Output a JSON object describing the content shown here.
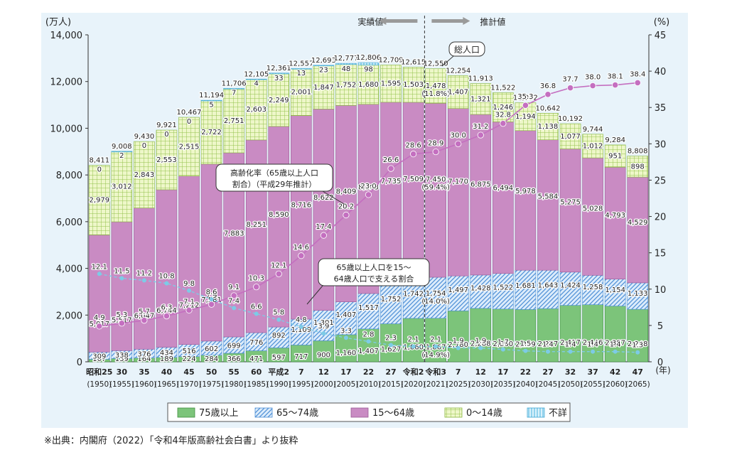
{
  "chart_data": {
    "type": "bar",
    "stacked": true,
    "y_left_unit": "(万人)",
    "y_right_unit": "(%)",
    "year_unit": "(年)",
    "ylim": [
      0,
      14000
    ],
    "y2lim": [
      0,
      45
    ],
    "y_ticks": [
      "0",
      "2,000",
      "4,000",
      "6,000",
      "8,000",
      "10,000",
      "12,000",
      "14,000"
    ],
    "y2_ticks": [
      "0",
      "5",
      "10",
      "15",
      "20",
      "25",
      "30",
      "35",
      "40",
      "45"
    ],
    "categories": [
      {
        "era": "昭和25",
        "year": "(1950)"
      },
      {
        "era": "30",
        "year": "(1955)"
      },
      {
        "era": "35",
        "year": "(1960)"
      },
      {
        "era": "40",
        "year": "(1965)"
      },
      {
        "era": "45",
        "year": "(1970)"
      },
      {
        "era": "50",
        "year": "(1975)"
      },
      {
        "era": "55",
        "year": "(1980)"
      },
      {
        "era": "60",
        "year": "(1985)"
      },
      {
        "era": "平成2",
        "year": "(1990)"
      },
      {
        "era": "7",
        "year": "(1995)"
      },
      {
        "era": "12",
        "year": "(2000)"
      },
      {
        "era": "17",
        "year": "(2005)"
      },
      {
        "era": "22",
        "year": "(2010)"
      },
      {
        "era": "27",
        "year": "(2015)"
      },
      {
        "era": "令和2",
        "year": "(2020)"
      },
      {
        "era": "令和3",
        "year": "(2021)"
      },
      {
        "era": "7",
        "year": "(2025)"
      },
      {
        "era": "12",
        "year": "(2030)"
      },
      {
        "era": "17",
        "year": "(2035)"
      },
      {
        "era": "22",
        "year": "(2040)"
      },
      {
        "era": "27",
        "year": "(2045)"
      },
      {
        "era": "32",
        "year": "(2050)"
      },
      {
        "era": "37",
        "year": "(2055)"
      },
      {
        "era": "42",
        "year": "(2060)"
      },
      {
        "era": "47",
        "year": "(2065)"
      }
    ],
    "series": [
      {
        "name": "75歳以上",
        "color": "#7cc47a",
        "values": [
          107,
          139,
          164,
          189,
          224,
          284,
          366,
          471,
          597,
          717,
          900,
          1160,
          1407,
          1627,
          1860,
          1867,
          2180,
          2288,
          2260,
          2239,
          2277,
          2417,
          2446,
          2387,
          2248
        ],
        "labels": [
          "107",
          "139",
          "164",
          "189",
          "224",
          "284",
          "366",
          "471",
          "597",
          "717",
          "900",
          "1,160",
          "1,407",
          "1,627",
          "1,860",
          "1,867\n(14.9%)",
          "2,180",
          "2,288",
          "2,260",
          "2,239",
          "2,277",
          "2,417",
          "2,446",
          "2,387",
          "2,248"
        ]
      },
      {
        "name": "65～74歳",
        "color": "#7fb0e6",
        "values": [
          309,
          338,
          376,
          434,
          516,
          602,
          699,
          776,
          892,
          1109,
          1301,
          1407,
          1517,
          1752,
          1742,
          1754,
          1497,
          1428,
          1522,
          1681,
          1643,
          1424,
          1258,
          1154,
          1133
        ],
        "labels": [
          "309",
          "338",
          "376",
          "434",
          "516",
          "602",
          "699",
          "776",
          "892",
          "1,109",
          "1,301",
          "1,407",
          "1,517",
          "1,752",
          "1,742",
          "1,754\n(14.0%)",
          "1,497",
          "1,428",
          "1,522",
          "1,681",
          "1,643",
          "1,424",
          "1,258",
          "1,154",
          "1,133"
        ]
      },
      {
        "name": "15～64歳",
        "color": "#c98bc3",
        "values": [
          5017,
          5517,
          6047,
          6744,
          7212,
          7581,
          7883,
          8251,
          8590,
          8716,
          8622,
          8409,
          8103,
          7735,
          7509,
          7450,
          7170,
          6875,
          6494,
          5978,
          5584,
          5275,
          5028,
          4793,
          4529
        ],
        "labels": [
          "5,017",
          "5,517",
          "6,047",
          "6,744",
          "7,212",
          "7,581",
          "7,883",
          "8,251",
          "8,590",
          "8,716",
          "8,622",
          "8,409",
          "8,103",
          "7,735",
          "7,509",
          "7,450\n(59.4%)",
          "7,170",
          "6,875",
          "6,494",
          "5,978",
          "5,584",
          "5,275",
          "5,028",
          "4,793",
          "4,529"
        ]
      },
      {
        "name": "0～14歳",
        "color": "#cfe68a",
        "values": [
          2979,
          3012,
          2843,
          2553,
          2515,
          2722,
          2751,
          2603,
          2249,
          2001,
          1847,
          1752,
          1680,
          1595,
          1503,
          1478,
          1407,
          1321,
          1246,
          1194,
          1138,
          1077,
          1012,
          951,
          898
        ],
        "labels": [
          "2,979",
          "3,012",
          "2,843",
          "2,553",
          "2,515",
          "2,722",
          "2,751",
          "2,603",
          "2,249",
          "2,001",
          "1,847",
          "1,752",
          "1,680",
          "1,595",
          "1,503",
          "1,478\n(11.8%)",
          "1,407",
          "1,321",
          "1,246",
          "1,194",
          "1,138",
          "1,077",
          "1,012",
          "951",
          "898"
        ]
      },
      {
        "name": "不詳",
        "color": "#8fd3f0",
        "values": [
          0,
          2,
          0,
          0,
          0,
          5,
          7,
          4,
          33,
          13,
          23,
          48,
          98,
          0,
          0,
          0,
          0,
          0,
          0,
          0,
          0,
          0,
          0,
          0,
          0
        ],
        "labels": [
          "0",
          "2",
          "0",
          "0",
          "0",
          "5",
          "7",
          "4",
          "33",
          "13",
          "23",
          "48",
          "98",
          "",
          "",
          "",
          "",
          "",
          "",
          "",
          "",
          "",
          "",
          "",
          ""
        ]
      }
    ],
    "totals": [
      "8,411",
      "9,008",
      "9,430",
      "9,921",
      "10,467",
      "11,194",
      "11,706",
      "12,105",
      "12,361",
      "12,557",
      "12,693",
      "12,777",
      "12,806",
      "12,709",
      "12,615",
      "12,550",
      "12,254",
      "11,913",
      "11,522",
      "11,092",
      "10,642",
      "10,192",
      "9,744",
      "9,284",
      "8,808"
    ],
    "total_values": [
      8411,
      9008,
      9430,
      9921,
      10467,
      11194,
      11706,
      12105,
      12361,
      12557,
      12693,
      12777,
      12806,
      12709,
      12615,
      12550,
      12254,
      11913,
      11522,
      11092,
      10642,
      10192,
      9744,
      9284,
      8808
    ],
    "aging_rate": {
      "name": "高齢化率（65歳以上人口割合）（平成29年推計）",
      "color": "#c46fc0",
      "values": [
        4.9,
        5.3,
        5.7,
        6.3,
        7.1,
        7.9,
        9.1,
        10.3,
        12.1,
        14.6,
        17.4,
        20.2,
        23.0,
        26.6,
        28.6,
        28.9,
        30.0,
        31.2,
        32.8,
        35.3,
        36.8,
        37.7,
        38.0,
        38.1,
        38.4
      ]
    },
    "support_ratio": {
      "name": "65歳以上人口を15～64歳人口で支える割合",
      "color": "#7dcbe6",
      "values": [
        12.1,
        11.5,
        11.2,
        10.8,
        9.8,
        8.6,
        7.4,
        6.6,
        5.8,
        4.8,
        3.9,
        3.3,
        2.8,
        2.3,
        2.1,
        2.1,
        1.9,
        1.9,
        1.7,
        1.5,
        1.4,
        1.4,
        1.4,
        1.4,
        1.3
      ]
    },
    "annotations": {
      "actual": "実績値",
      "projected": "推計値",
      "total_label": "総人口",
      "aging_label_line1": "高齢化率（65歳以上人口",
      "aging_label_line2": "割合）（平成29年推計）",
      "support_label_line1": "65歳以上人口を15～",
      "support_label_line2": "64歳人口で支える割合"
    },
    "legend_position": "bottom"
  },
  "source_note": "※出典：内閣府（2022）「令和4年版高齢社会白書」より抜粋"
}
